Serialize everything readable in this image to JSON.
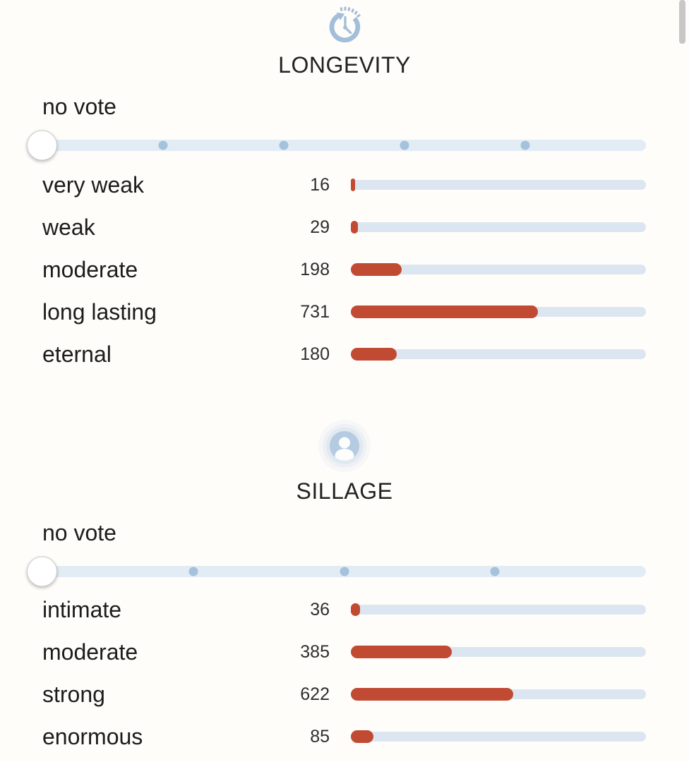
{
  "colors": {
    "accent_red": "#c14a33",
    "bar_track": "#dce6f0",
    "slider_track": "#e2ecf5",
    "slider_dot": "#a6c1db",
    "icon_blue": "#a3bedb"
  },
  "sections": [
    {
      "id": "longevity",
      "icon": "history-clock-icon",
      "title": "LONGEVITY",
      "no_vote_label": "no vote",
      "slider": {
        "options": 5,
        "selected": "no vote",
        "thumb_at_start": true
      },
      "votes": [
        {
          "label": "very weak",
          "count": 16
        },
        {
          "label": "weak",
          "count": 29
        },
        {
          "label": "moderate",
          "count": 198
        },
        {
          "label": "long lasting",
          "count": 731
        },
        {
          "label": "eternal",
          "count": 180
        }
      ]
    },
    {
      "id": "sillage",
      "icon": "person-aura-icon",
      "title": "SILLAGE",
      "no_vote_label": "no vote",
      "slider": {
        "options": 4,
        "selected": "no vote",
        "thumb_at_start": true
      },
      "votes": [
        {
          "label": "intimate",
          "count": 36
        },
        {
          "label": "moderate",
          "count": 385
        },
        {
          "label": "strong",
          "count": 622
        },
        {
          "label": "enormous",
          "count": 85
        }
      ]
    }
  ],
  "chart_data": [
    {
      "type": "bar",
      "title": "LONGEVITY",
      "categories": [
        "very weak",
        "weak",
        "moderate",
        "long lasting",
        "eternal"
      ],
      "values": [
        16,
        29,
        198,
        731,
        180
      ],
      "note": "bar fill = category votes / total votes (total 1154)"
    },
    {
      "type": "bar",
      "title": "SILLAGE",
      "categories": [
        "intimate",
        "moderate",
        "strong",
        "enormous"
      ],
      "values": [
        36,
        385,
        622,
        85
      ],
      "note": "bar fill = category votes / total votes (total 1128)"
    }
  ]
}
